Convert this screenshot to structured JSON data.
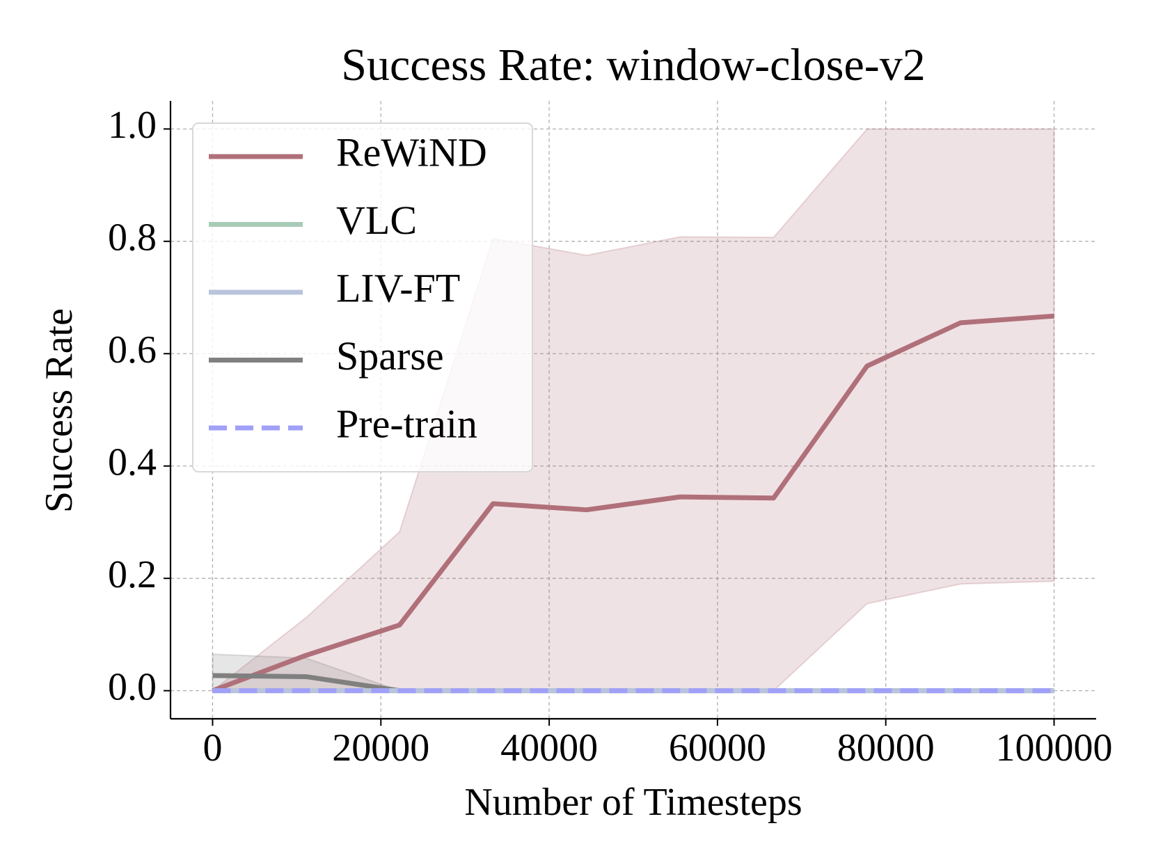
{
  "chart_data": {
    "type": "line",
    "title": "Success Rate: window-close-v2",
    "xlabel": "Number of Timesteps",
    "ylabel": "Success Rate",
    "x": [
      0,
      11111,
      22222,
      33333,
      44444,
      55556,
      66667,
      77778,
      88889,
      100000
    ],
    "series": [
      {
        "name": "ReWiND",
        "color": "#b0707a",
        "dashed": false,
        "values": [
          0,
          0.063,
          0.117,
          0.333,
          0.322,
          0.345,
          0.343,
          0.578,
          0.655,
          0.667
        ],
        "lower": [
          0,
          0,
          0,
          0,
          0,
          0,
          0,
          0.155,
          0.19,
          0.195
        ],
        "upper": [
          0,
          0.13,
          0.283,
          0.805,
          0.775,
          0.808,
          0.807,
          1.0,
          1.0,
          1.0
        ]
      },
      {
        "name": "VLC",
        "color": "#a8cbb8",
        "dashed": false,
        "values": [
          0,
          0,
          0,
          0,
          0,
          0,
          0,
          0,
          0,
          0
        ]
      },
      {
        "name": "LIV-FT",
        "color": "#b8c4dc",
        "dashed": false,
        "values": [
          0,
          0,
          0,
          0,
          0,
          0,
          0,
          0,
          0,
          0
        ]
      },
      {
        "name": "Sparse",
        "color": "#808080",
        "dashed": false,
        "values": [
          0.027,
          0.025,
          0,
          0,
          0,
          0,
          0,
          0,
          0,
          0
        ],
        "lower": [
          0,
          0,
          0,
          0,
          0,
          0,
          0,
          0,
          0,
          0
        ],
        "upper": [
          0.065,
          0.058,
          0,
          0,
          0,
          0,
          0,
          0,
          0,
          0
        ]
      },
      {
        "name": "Pre-train",
        "color": "#a0a0f8",
        "dashed": true,
        "values": [
          0,
          0,
          0,
          0,
          0,
          0,
          0,
          0,
          0,
          0
        ]
      }
    ],
    "xlim": [
      -5000,
      105000
    ],
    "ylim": [
      -0.05,
      1.05
    ],
    "xticks": [
      0,
      20000,
      40000,
      60000,
      80000,
      100000
    ],
    "yticks": [
      {
        "value": 0,
        "label": "0.0"
      },
      {
        "value": 0.2,
        "label": "0.2"
      },
      {
        "value": 0.4,
        "label": "0.4"
      },
      {
        "value": 0.6,
        "label": "0.6"
      },
      {
        "value": 0.8,
        "label": "0.8"
      },
      {
        "value": 1.0,
        "label": "1.0"
      }
    ],
    "grid": true,
    "legend": "upper left"
  }
}
